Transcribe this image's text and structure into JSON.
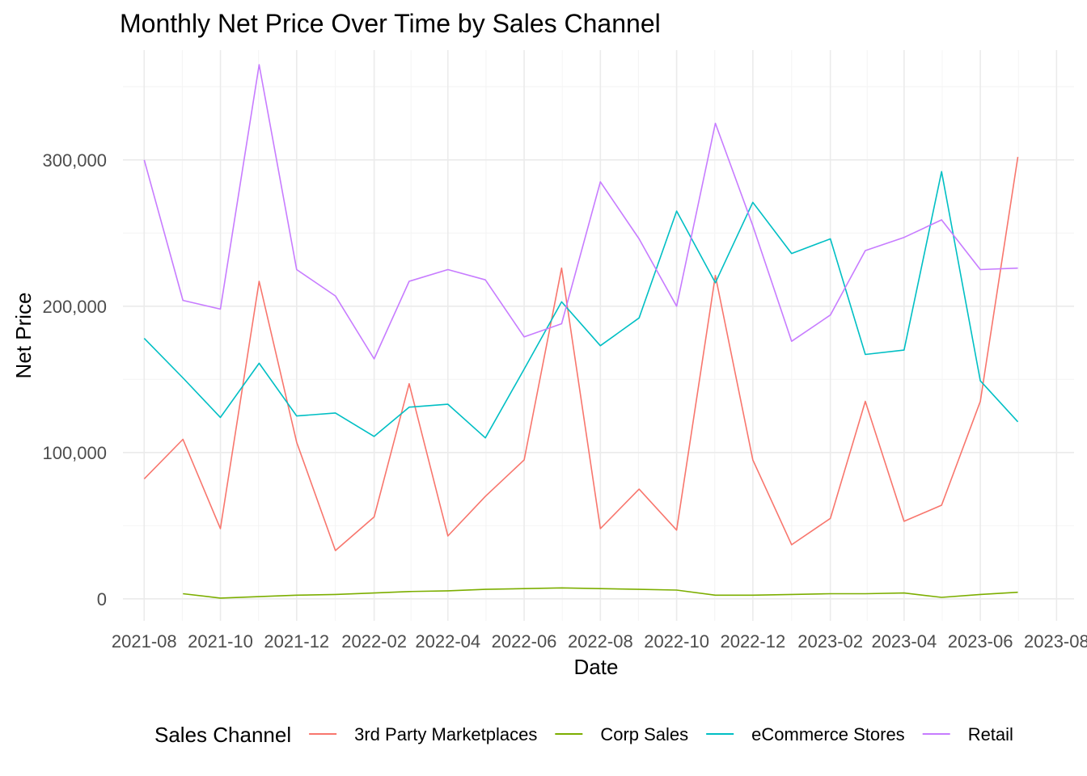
{
  "chart_data": {
    "type": "line",
    "title": "Monthly Net Price Over Time by Sales Channel",
    "xlabel": "Date",
    "ylabel": "Net Price",
    "legend_title": "Sales Channel",
    "legend_position": "bottom",
    "grid": true,
    "ylim": [
      -15000,
      375000
    ],
    "xlim": [
      "2021-07-15",
      "2023-08-15"
    ],
    "x_ticks": [
      "2021-08",
      "2021-10",
      "2021-12",
      "2022-02",
      "2022-04",
      "2022-06",
      "2022-08",
      "2022-10",
      "2022-12",
      "2023-02",
      "2023-04",
      "2023-06",
      "2023-08"
    ],
    "y_ticks": [
      {
        "value": 0,
        "label": "0"
      },
      {
        "value": 100000,
        "label": "100,000"
      },
      {
        "value": 200000,
        "label": "200,000"
      },
      {
        "value": 300000,
        "label": "300,000"
      }
    ],
    "series": [
      {
        "name": "3rd Party Marketplaces",
        "color": "#F8766D",
        "points": [
          [
            "2021-08",
            82000
          ],
          [
            "2021-09",
            109000
          ],
          [
            "2021-10",
            48000
          ],
          [
            "2021-11",
            217000
          ],
          [
            "2021-12",
            107000
          ],
          [
            "2022-01",
            33000
          ],
          [
            "2022-02",
            56000
          ],
          [
            "2022-03",
            147000
          ],
          [
            "2022-04",
            43000
          ],
          [
            "2022-05",
            70000
          ],
          [
            "2022-06",
            95000
          ],
          [
            "2022-07",
            226000
          ],
          [
            "2022-08",
            48000
          ],
          [
            "2022-09",
            75000
          ],
          [
            "2022-10",
            47000
          ],
          [
            "2022-11",
            221000
          ],
          [
            "2022-12",
            95000
          ],
          [
            "2023-01",
            37000
          ],
          [
            "2023-02",
            55000
          ],
          [
            "2023-03",
            135000
          ],
          [
            "2023-04",
            53000
          ],
          [
            "2023-05",
            64000
          ],
          [
            "2023-06",
            135000
          ],
          [
            "2023-07",
            302000
          ]
        ]
      },
      {
        "name": "Corp Sales",
        "color": "#7CAE00",
        "points": [
          [
            "2021-09",
            3500
          ],
          [
            "2021-10",
            500
          ],
          [
            "2021-11",
            1500
          ],
          [
            "2021-12",
            2500
          ],
          [
            "2022-01",
            3000
          ],
          [
            "2022-02",
            4000
          ],
          [
            "2022-03",
            5000
          ],
          [
            "2022-04",
            5500
          ],
          [
            "2022-05",
            6500
          ],
          [
            "2022-06",
            7000
          ],
          [
            "2022-07",
            7500
          ],
          [
            "2022-08",
            7000
          ],
          [
            "2022-09",
            6500
          ],
          [
            "2022-10",
            6000
          ],
          [
            "2022-11",
            2500
          ],
          [
            "2022-12",
            2500
          ],
          [
            "2023-01",
            3000
          ],
          [
            "2023-02",
            3500
          ],
          [
            "2023-03",
            3500
          ],
          [
            "2023-04",
            4000
          ],
          [
            "2023-05",
            1000
          ],
          [
            "2023-06",
            3000
          ],
          [
            "2023-07",
            4500
          ]
        ]
      },
      {
        "name": "eCommerce Stores",
        "color": "#00BFC4",
        "points": [
          [
            "2021-08",
            178000
          ],
          [
            "2021-09",
            151000
          ],
          [
            "2021-10",
            124000
          ],
          [
            "2021-11",
            161000
          ],
          [
            "2021-12",
            125000
          ],
          [
            "2022-01",
            127000
          ],
          [
            "2022-02",
            111000
          ],
          [
            "2022-03",
            131000
          ],
          [
            "2022-04",
            133000
          ],
          [
            "2022-05",
            110000
          ],
          [
            "2022-06",
            157000
          ],
          [
            "2022-07",
            203000
          ],
          [
            "2022-08",
            173000
          ],
          [
            "2022-09",
            192000
          ],
          [
            "2022-10",
            265000
          ],
          [
            "2022-11",
            216000
          ],
          [
            "2022-12",
            271000
          ],
          [
            "2023-01",
            236000
          ],
          [
            "2023-02",
            246000
          ],
          [
            "2023-03",
            167000
          ],
          [
            "2023-04",
            170000
          ],
          [
            "2023-05",
            292000
          ],
          [
            "2023-06",
            149000
          ],
          [
            "2023-07",
            121000
          ]
        ]
      },
      {
        "name": "Retail",
        "color": "#C77CFF",
        "points": [
          [
            "2021-08",
            300000
          ],
          [
            "2021-09",
            204000
          ],
          [
            "2021-10",
            198000
          ],
          [
            "2021-11",
            365000
          ],
          [
            "2021-12",
            225000
          ],
          [
            "2022-01",
            207000
          ],
          [
            "2022-02",
            164000
          ],
          [
            "2022-03",
            217000
          ],
          [
            "2022-04",
            225000
          ],
          [
            "2022-05",
            218000
          ],
          [
            "2022-06",
            179000
          ],
          [
            "2022-07",
            188000
          ],
          [
            "2022-08",
            285000
          ],
          [
            "2022-09",
            246000
          ],
          [
            "2022-10",
            200000
          ],
          [
            "2022-11",
            325000
          ],
          [
            "2022-12",
            255000
          ],
          [
            "2023-01",
            176000
          ],
          [
            "2023-02",
            194000
          ],
          [
            "2023-03",
            238000
          ],
          [
            "2023-04",
            247000
          ],
          [
            "2023-05",
            259000
          ],
          [
            "2023-06",
            225000
          ],
          [
            "2023-07",
            226000
          ]
        ]
      }
    ]
  }
}
